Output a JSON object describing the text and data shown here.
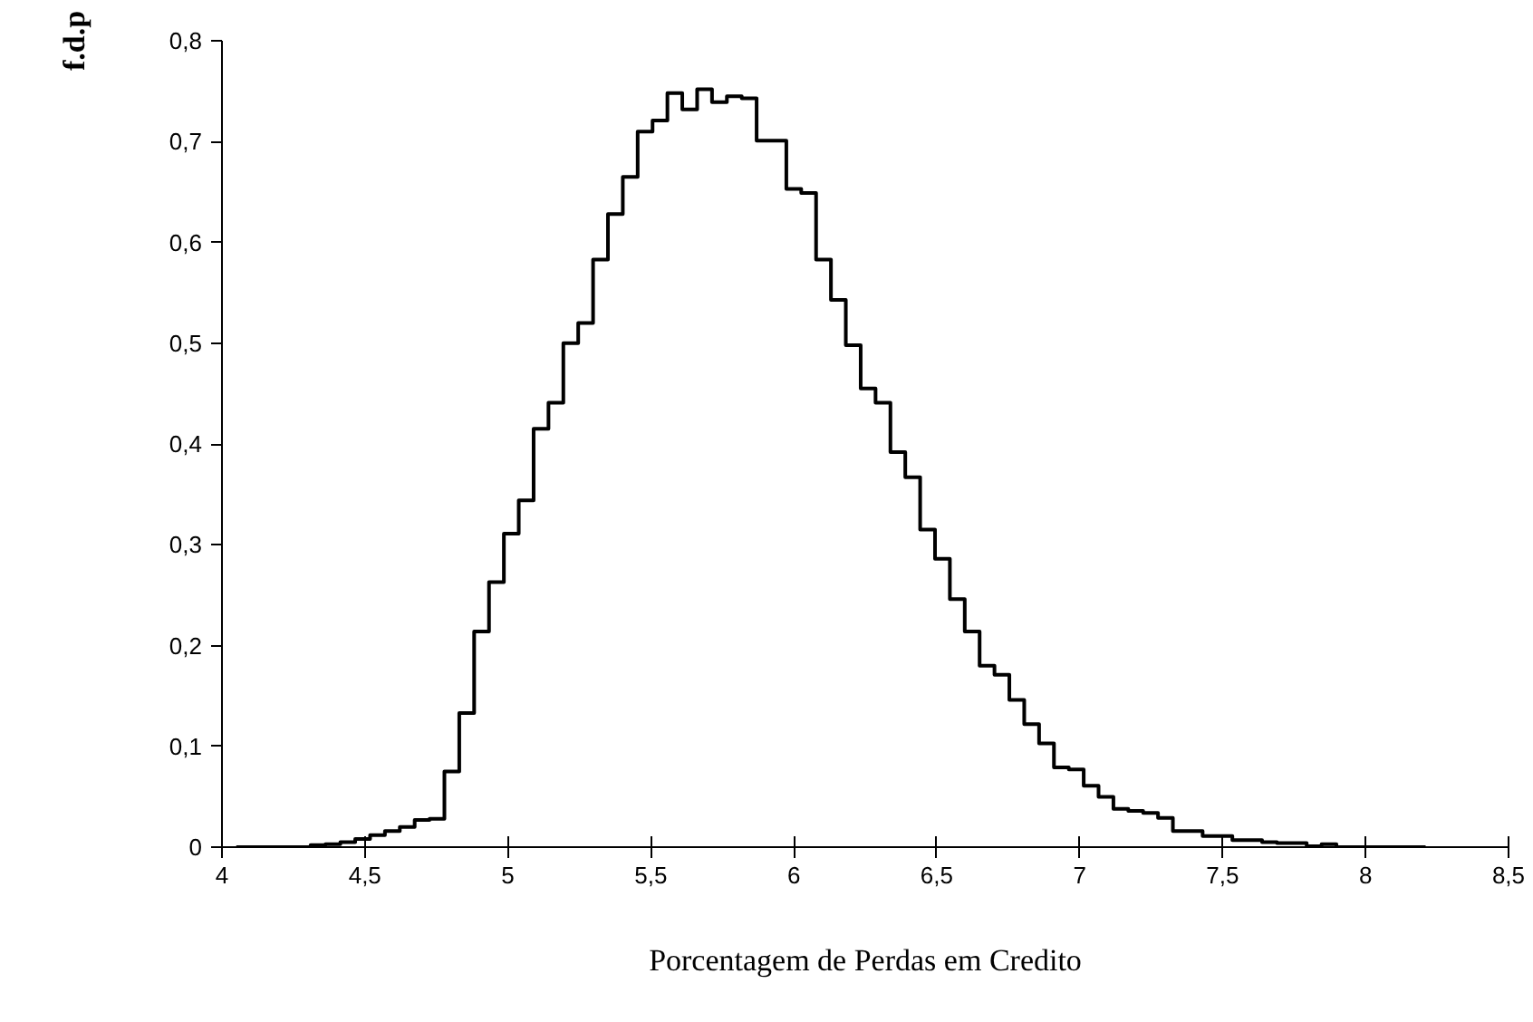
{
  "chart_data": {
    "type": "histogram",
    "xlabel": "Porcentagem de Perdas em Credito",
    "ylabel": "f.d.p",
    "bins": [
      4.05,
      4.102,
      4.154,
      4.206,
      4.258,
      4.31,
      4.362,
      4.414,
      4.466,
      4.518,
      4.57,
      4.622,
      4.674,
      4.726,
      4.778,
      4.83,
      4.882,
      4.934,
      4.986,
      5.038,
      5.09,
      5.142,
      5.194,
      5.246,
      5.298,
      5.35,
      5.402,
      5.454,
      5.506,
      5.558,
      5.61,
      5.662,
      5.714,
      5.766,
      5.818,
      5.87,
      5.922,
      5.974,
      6.026,
      6.078,
      6.13,
      6.182,
      6.234,
      6.286,
      6.338,
      6.39,
      6.442,
      6.494,
      6.546,
      6.598,
      6.65,
      6.702,
      6.754,
      6.806,
      6.858,
      6.91,
      6.962,
      7.014,
      7.066,
      7.118,
      7.17,
      7.222,
      7.274,
      7.326,
      7.378,
      7.43,
      7.482,
      7.534,
      7.586,
      7.638,
      7.69,
      7.742,
      7.794,
      7.846,
      7.898,
      7.95,
      8.002,
      8.054,
      8.106,
      8.158,
      8.21
    ],
    "values": [
      0,
      0,
      0,
      0,
      0,
      0.002,
      0.003,
      0.005,
      0.008,
      0.012,
      0.016,
      0.02,
      0.027,
      0.028,
      0.075,
      0.133,
      0.214,
      0.263,
      0.311,
      0.344,
      0.415,
      0.441,
      0.5,
      0.52,
      0.583,
      0.628,
      0.665,
      0.71,
      0.721,
      0.748,
      0.732,
      0.752,
      0.739,
      0.745,
      0.743,
      0.701,
      0.701,
      0.653,
      0.649,
      0.583,
      0.543,
      0.498,
      0.455,
      0.441,
      0.392,
      0.367,
      0.315,
      0.286,
      0.246,
      0.214,
      0.18,
      0.171,
      0.146,
      0.122,
      0.103,
      0.079,
      0.077,
      0.061,
      0.05,
      0.038,
      0.036,
      0.034,
      0.029,
      0.016,
      0.016,
      0.011,
      0.011,
      0.007,
      0.007,
      0.005,
      0.004,
      0.004,
      0.001,
      0.003,
      0,
      0,
      0,
      0,
      0,
      0
    ],
    "color": "#000000",
    "xlim": [
      4,
      8.5
    ],
    "xticks": [
      4,
      {
        "value": 4.5,
        "label": "4,5"
      },
      5,
      {
        "value": 5.5,
        "label": "5,5"
      },
      6,
      {
        "value": 6.5,
        "label": "6,5"
      },
      7,
      {
        "value": 7.5,
        "label": "7,5"
      },
      8,
      {
        "value": 8.5,
        "label": "8,5"
      }
    ],
    "ylim": [
      0,
      0.8
    ],
    "yticks": [
      0,
      {
        "value": 0.1,
        "label": "0,1"
      },
      {
        "value": 0.2,
        "label": "0,2"
      },
      {
        "value": 0.3,
        "label": "0,3"
      },
      {
        "value": 0.4,
        "label": "0,4"
      },
      {
        "value": 0.5,
        "label": "0,5"
      },
      {
        "value": 0.6,
        "label": "0,6"
      },
      {
        "value": 0.7,
        "label": "0,7"
      },
      {
        "value": 0.8,
        "label": "0,8"
      }
    ],
    "grid": false
  }
}
